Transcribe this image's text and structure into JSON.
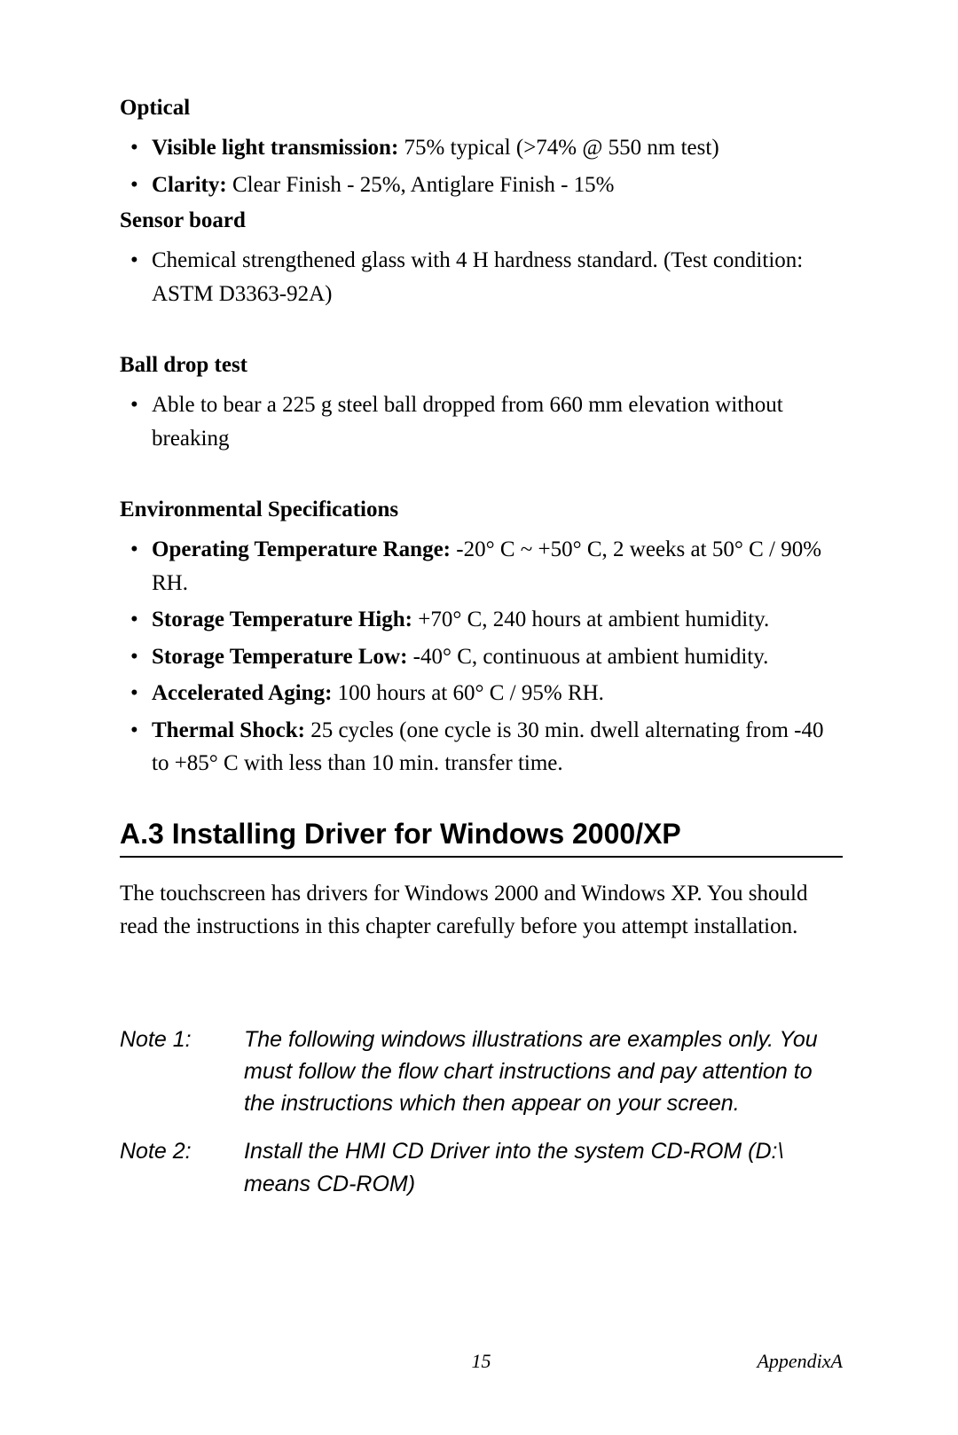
{
  "optical": {
    "heading": "Optical",
    "items": [
      {
        "label": "Visible light transmission:",
        "text": " 75% typical (>74% @ 550 nm test)"
      },
      {
        "label": "Clarity:",
        "text": " Clear Finish - 25%, Antiglare Finish - 15%"
      }
    ]
  },
  "sensor": {
    "heading": "Sensor  board",
    "items": [
      {
        "label": "",
        "text": "Chemical strengthened glass with 4 H hardness standard. (Test condition: ASTM D3363-92A)"
      }
    ]
  },
  "ball": {
    "heading": "Ball  drop  test",
    "items": [
      {
        "label": "",
        "text": "Able to bear a 225 g steel ball dropped from 660 mm elevation without breaking"
      }
    ]
  },
  "env": {
    "heading": "Environmental Specifications",
    "items": [
      {
        "label": "Operating Temperature Range:",
        "text": " -20°  C ~ +50° C, 2 weeks at 50° C / 90% RH."
      },
      {
        "label": "Storage Temperature High:",
        "text": " +70° C, 240 hours at ambient humidity."
      },
      {
        "label": "Storage Temperature Low:",
        "text": " -40° C, continuous at ambient humidity."
      },
      {
        "label": "Accelerated Aging:",
        "text": " 100 hours at 60° C / 95% RH."
      },
      {
        "label": "Thermal Shock:",
        "text": " 25 cycles (one cycle is 30 min. dwell alternating from -40 to +85° C with less than 10 min. transfer time."
      }
    ]
  },
  "section": {
    "title": "A.3  Installing Driver for Windows 2000/XP",
    "body": "The touchscreen has drivers for Windows 2000 and Windows XP. You should read the instructions in this chapter carefully before you attempt installation."
  },
  "notes": [
    {
      "label": "Note 1:",
      "text": "The following windows illustrations are examples only. You must follow the flow chart instructions and pay attention to the instructions which then appear on your screen."
    },
    {
      "label": "Note 2:",
      "text": "Install the HMI CD Driver into the system CD-ROM (D:\\ means CD-ROM)"
    }
  ],
  "footer": {
    "page": "15",
    "appendix": "AppendixA"
  }
}
